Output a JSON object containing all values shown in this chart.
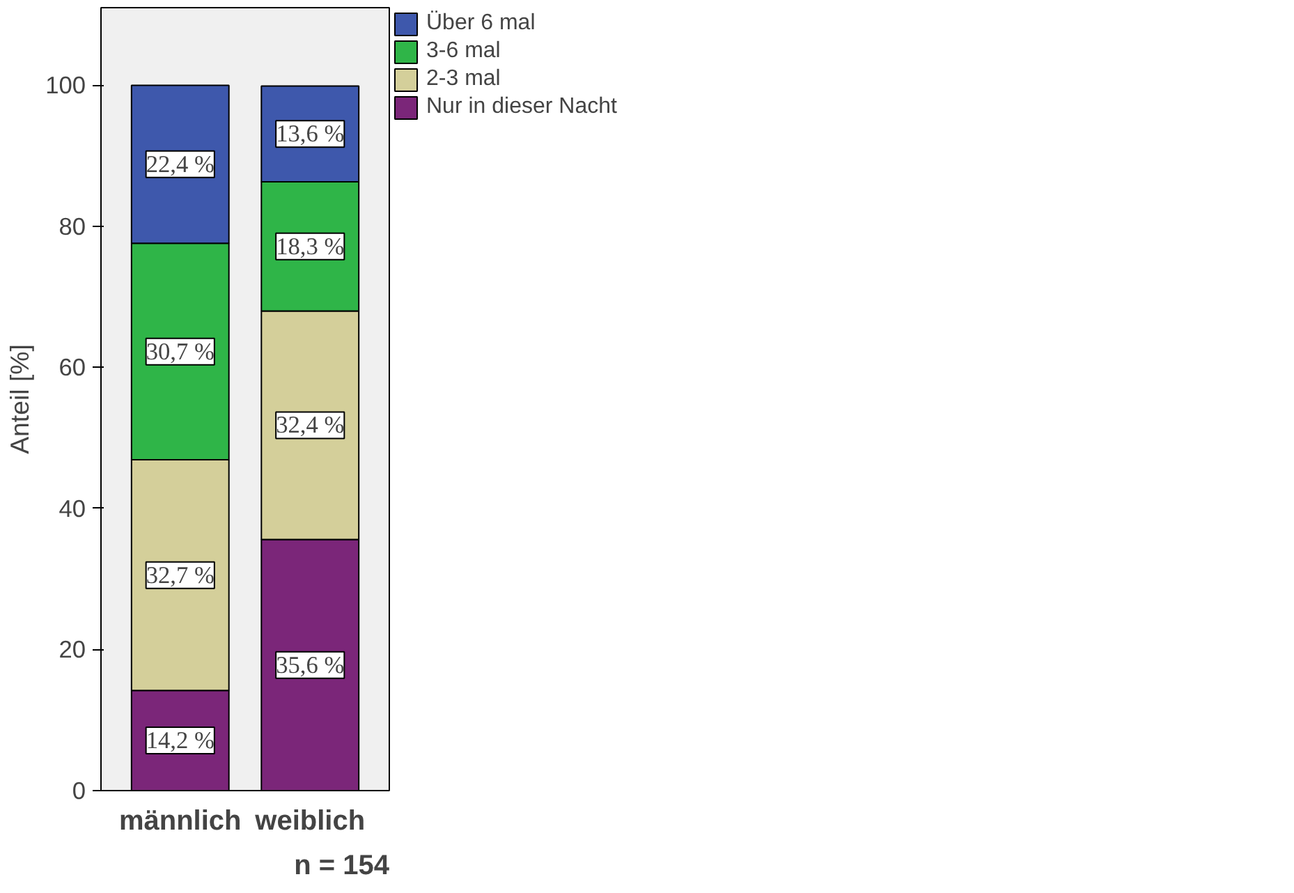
{
  "chart_data": {
    "type": "bar",
    "stacked": true,
    "ylabel": "Anteil [%]",
    "categories": [
      "männlich",
      "weiblich"
    ],
    "series": [
      {
        "name": "Nur in dieser Nacht",
        "color": "#7b2679",
        "values": [
          14.2,
          35.6
        ],
        "value_labels": [
          "14,2 %",
          "35,6 %"
        ]
      },
      {
        "name": "2-3 mal",
        "color": "#d4cf9a",
        "values": [
          32.7,
          32.4
        ],
        "value_labels": [
          "32,7 %",
          "32,4 %"
        ]
      },
      {
        "name": "3-6 mal",
        "color": "#2fb548",
        "values": [
          30.7,
          18.3
        ],
        "value_labels": [
          "30,7 %",
          "18,3 %"
        ]
      },
      {
        "name": "Über 6 mal",
        "color": "#3e58ac",
        "values": [
          22.4,
          13.6
        ],
        "value_labels": [
          "22,4 %",
          "13,6 %"
        ]
      }
    ],
    "ylim": [
      0,
      111
    ],
    "yticks": [
      0,
      20,
      40,
      60,
      80,
      100
    ],
    "grid": false,
    "legend": "right",
    "annotations": [
      "n = 154"
    ]
  }
}
